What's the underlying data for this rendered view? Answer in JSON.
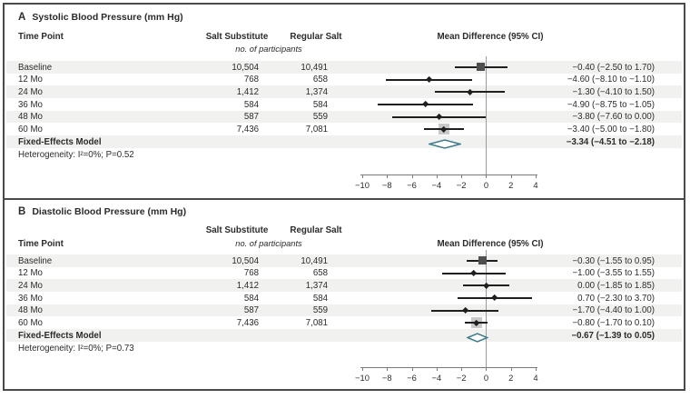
{
  "columns": {
    "time_point": "Time Point",
    "group1": "Salt Substitute",
    "group2": "Regular Salt",
    "participants": "no. of participants",
    "effect": "Mean Difference (95% CI)"
  },
  "colors": {
    "summary_diamond": "#3e7b8c",
    "stripe": "#f1f1ef",
    "ci_line": "#1f1f1f",
    "square_marker": "#4f4f4f",
    "weight_box": "#c9c9c9",
    "axis": "#7a7a7a",
    "zero_line": "#9b9b9b",
    "border": "#4a4a4a",
    "text": "#2b2b2b"
  },
  "chart_data": [
    {
      "type": "forest",
      "panel_letter": "A",
      "title": "Systolic Blood Pressure (mm Hg)",
      "effect_label": "Mean Difference (95% CI)",
      "xlim": [
        -10,
        4
      ],
      "ticks": [
        -10,
        -8,
        -6,
        -4,
        -2,
        0,
        2,
        4
      ],
      "heterogeneity": "Heterogeneity: I²=0%; P=0.52",
      "rows": [
        {
          "label": "Baseline",
          "n1": "10,504",
          "n2": "10,491",
          "mean": -0.4,
          "ci_low": -2.5,
          "ci_high": 1.7,
          "text": "−0.40 (−2.50 to 1.70)",
          "marker": "square",
          "bold": false
        },
        {
          "label": "12 Mo",
          "n1": "768",
          "n2": "658",
          "mean": -4.6,
          "ci_low": -8.1,
          "ci_high": -1.1,
          "text": "−4.60 (−8.10 to −1.10)",
          "marker": "point",
          "bold": false
        },
        {
          "label": "24 Mo",
          "n1": "1,412",
          "n2": "1,374",
          "mean": -1.3,
          "ci_low": -4.1,
          "ci_high": 1.5,
          "text": "−1.30 (−4.10 to 1.50)",
          "marker": "point",
          "bold": false
        },
        {
          "label": "36 Mo",
          "n1": "584",
          "n2": "584",
          "mean": -4.9,
          "ci_low": -8.75,
          "ci_high": -1.05,
          "text": "−4.90 (−8.75 to −1.05)",
          "marker": "point",
          "bold": false
        },
        {
          "label": "48 Mo",
          "n1": "587",
          "n2": "559",
          "mean": -3.8,
          "ci_low": -7.6,
          "ci_high": 0.0,
          "text": "−3.80 (−7.60 to 0.00)",
          "marker": "point",
          "bold": false
        },
        {
          "label": "60 Mo",
          "n1": "7,436",
          "n2": "7,081",
          "mean": -3.4,
          "ci_low": -5.0,
          "ci_high": -1.8,
          "text": "−3.40 (−5.00 to −1.80)",
          "marker": "point-weighted",
          "bold": false
        },
        {
          "label": "Fixed-Effects Model",
          "n1": "",
          "n2": "",
          "mean": -3.34,
          "ci_low": -4.51,
          "ci_high": -2.18,
          "text": "−3.34 (−4.51 to −2.18)",
          "marker": "summary",
          "bold": true
        }
      ]
    },
    {
      "type": "forest",
      "panel_letter": "B",
      "title": "Diastolic Blood Pressure (mm Hg)",
      "effect_label": "Mean Difference (95% CI)",
      "xlim": [
        -10,
        4
      ],
      "ticks": [
        -10,
        -8,
        -6,
        -4,
        -2,
        0,
        2,
        4
      ],
      "heterogeneity": "Heterogeneity: I²=0%; P=0.73",
      "rows": [
        {
          "label": "Baseline",
          "n1": "10,504",
          "n2": "10,491",
          "mean": -0.3,
          "ci_low": -1.55,
          "ci_high": 0.95,
          "text": "−0.30 (−1.55 to 0.95)",
          "marker": "square",
          "bold": false
        },
        {
          "label": "12 Mo",
          "n1": "768",
          "n2": "658",
          "mean": -1.0,
          "ci_low": -3.55,
          "ci_high": 1.55,
          "text": "−1.00 (−3.55 to 1.55)",
          "marker": "point",
          "bold": false
        },
        {
          "label": "24 Mo",
          "n1": "1,412",
          "n2": "1,374",
          "mean": 0.0,
          "ci_low": -1.85,
          "ci_high": 1.85,
          "text": "0.00 (−1.85 to 1.85)",
          "marker": "point",
          "bold": false
        },
        {
          "label": "36 Mo",
          "n1": "584",
          "n2": "584",
          "mean": 0.7,
          "ci_low": -2.3,
          "ci_high": 3.7,
          "text": "0.70 (−2.30 to 3.70)",
          "marker": "point",
          "bold": false
        },
        {
          "label": "48 Mo",
          "n1": "587",
          "n2": "559",
          "mean": -1.7,
          "ci_low": -4.4,
          "ci_high": 1.0,
          "text": "−1.70 (−4.40 to 1.00)",
          "marker": "point",
          "bold": false
        },
        {
          "label": "60 Mo",
          "n1": "7,436",
          "n2": "7,081",
          "mean": -0.8,
          "ci_low": -1.7,
          "ci_high": 0.1,
          "text": "−0.80 (−1.70 to 0.10)",
          "marker": "point-weighted",
          "bold": false
        },
        {
          "label": "Fixed-Effects Model",
          "n1": "",
          "n2": "",
          "mean": -0.67,
          "ci_low": -1.39,
          "ci_high": 0.05,
          "text": "−0.67 (−1.39 to 0.05)",
          "marker": "summary",
          "bold": true
        }
      ]
    }
  ]
}
